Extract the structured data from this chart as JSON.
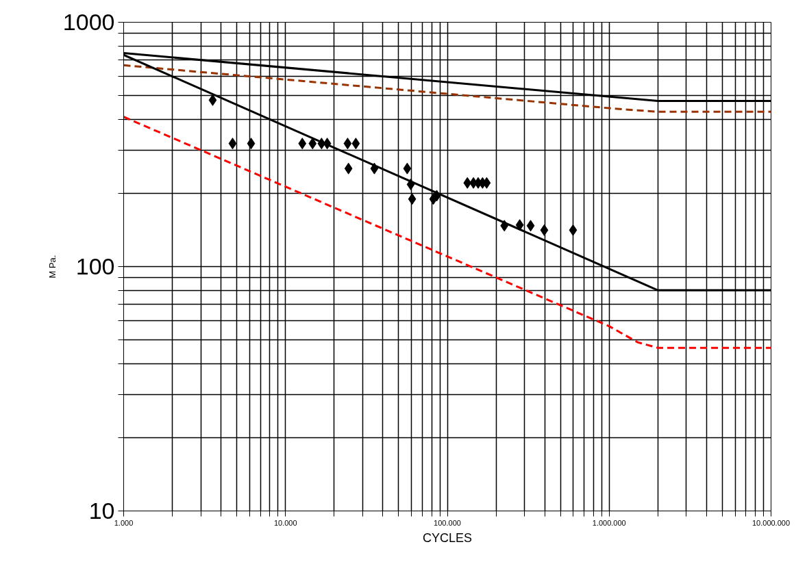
{
  "chart_data": {
    "type": "line",
    "xlabel": "CYCLES",
    "ylabel": "M Pa.",
    "log": "xy",
    "grid": true,
    "xlim": [
      1000,
      10000000
    ],
    "ylim": [
      10,
      1000
    ],
    "xticks": [
      {
        "value": 1000,
        "label": "1.000"
      },
      {
        "value": 2000,
        "label": null
      },
      {
        "value": 3000,
        "label": null
      },
      {
        "value": 4000,
        "label": null
      },
      {
        "value": 5000,
        "label": null
      },
      {
        "value": 6000,
        "label": null
      },
      {
        "value": 7000,
        "label": null
      },
      {
        "value": 8000,
        "label": null
      },
      {
        "value": 9000,
        "label": null
      },
      {
        "value": 10000,
        "label": "10.000"
      },
      {
        "value": 20000,
        "label": null
      },
      {
        "value": 30000,
        "label": null
      },
      {
        "value": 40000,
        "label": null
      },
      {
        "value": 50000,
        "label": null
      },
      {
        "value": 60000,
        "label": null
      },
      {
        "value": 70000,
        "label": null
      },
      {
        "value": 80000,
        "label": null
      },
      {
        "value": 90000,
        "label": null
      },
      {
        "value": 100000,
        "label": "100.000"
      },
      {
        "value": 200000,
        "label": null
      },
      {
        "value": 300000,
        "label": null
      },
      {
        "value": 400000,
        "label": null
      },
      {
        "value": 500000,
        "label": null
      },
      {
        "value": 600000,
        "label": null
      },
      {
        "value": 700000,
        "label": null
      },
      {
        "value": 800000,
        "label": null
      },
      {
        "value": 900000,
        "label": null
      },
      {
        "value": 1000000,
        "label": "1.000.000"
      },
      {
        "value": 2000000,
        "label": null
      },
      {
        "value": 3000000,
        "label": null
      },
      {
        "value": 4000000,
        "label": null
      },
      {
        "value": 5000000,
        "label": null
      },
      {
        "value": 6000000,
        "label": null
      },
      {
        "value": 7000000,
        "label": null
      },
      {
        "value": 8000000,
        "label": null
      },
      {
        "value": 9000000,
        "label": null
      },
      {
        "value": 10000000,
        "label": "10.000.000"
      }
    ],
    "yticks": [
      10,
      {
        "value": 20,
        "label": null
      },
      {
        "value": 30,
        "label": null
      },
      {
        "value": 40,
        "label": null
      },
      {
        "value": 50,
        "label": null
      },
      {
        "value": 60,
        "label": null
      },
      {
        "value": 70,
        "label": null
      },
      {
        "value": 80,
        "label": null
      },
      {
        "value": 90,
        "label": null
      },
      100,
      {
        "value": 200,
        "label": null
      },
      {
        "value": 300,
        "label": null
      },
      {
        "value": 400,
        "label": null
      },
      {
        "value": 500,
        "label": null
      },
      {
        "value": 600,
        "label": null
      },
      {
        "value": 700,
        "label": null
      },
      {
        "value": 800,
        "label": null
      },
      {
        "value": 900,
        "label": null
      },
      1000
    ],
    "series": [
      {
        "color": "#000000",
        "line_style": "solid",
        "marker": "none",
        "x": [
          1000,
          2000000,
          10000000
        ],
        "values": [
          748,
          476,
          476
        ]
      },
      {
        "color": "#993300",
        "line_style": "dashed",
        "marker": "none",
        "x": [
          1000,
          1000000,
          1500000,
          2000000,
          10000000
        ],
        "values": [
          667,
          445,
          436,
          430,
          430
        ]
      },
      {
        "color": "#000000",
        "line_style": "solid",
        "marker": "none",
        "x": [
          1000,
          2000000,
          10000000
        ],
        "values": [
          735,
          80,
          80
        ]
      },
      {
        "color": "#ff0000",
        "line_style": "dashed",
        "marker": "none",
        "x": [
          1000,
          1000000,
          1500000,
          2000000,
          10000000
        ],
        "values": [
          410,
          57,
          49,
          46.5,
          46.5
        ]
      },
      {
        "type": "scatter",
        "color": "#000000",
        "marker": "diamond",
        "x": [
          3550,
          4710,
          6130,
          12700,
          14700,
          16700,
          18100,
          24200,
          27200,
          24500,
          35400,
          56500,
          59400,
          60600,
          81900,
          86000,
          133000,
          145000,
          155000,
          165000,
          175000,
          225000,
          280000,
          327000,
          397000,
          598000
        ],
        "values": [
          480,
          319,
          319,
          319,
          319,
          319,
          319,
          319,
          319,
          252,
          252,
          252,
          217,
          189,
          189,
          195,
          220,
          220,
          220,
          220,
          220,
          147,
          148,
          147,
          141,
          141
        ]
      }
    ]
  }
}
